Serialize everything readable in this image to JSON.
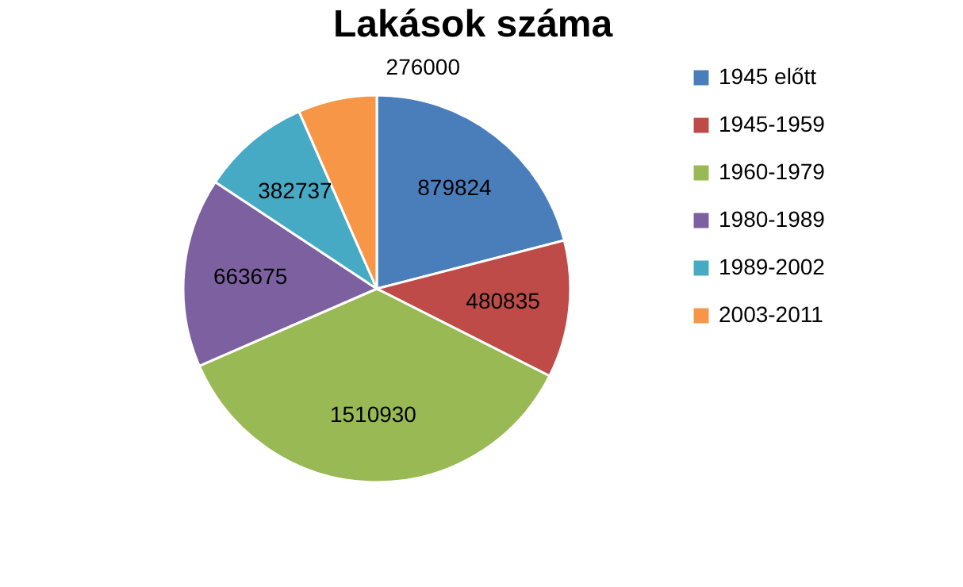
{
  "chart_data": {
    "type": "pie",
    "title": "Lakások száma",
    "categories": [
      "1945 előtt",
      "1945-1959",
      "1960-1979",
      "1980-1989",
      "1989-2002",
      "2003-2011"
    ],
    "values": [
      879824,
      480835,
      1510930,
      663675,
      382737,
      276000
    ],
    "colors": [
      "#4a7ebb",
      "#be4b48",
      "#98b954",
      "#7d60a0",
      "#46aac5",
      "#f79646"
    ],
    "data_labels": true,
    "legend": "right"
  }
}
